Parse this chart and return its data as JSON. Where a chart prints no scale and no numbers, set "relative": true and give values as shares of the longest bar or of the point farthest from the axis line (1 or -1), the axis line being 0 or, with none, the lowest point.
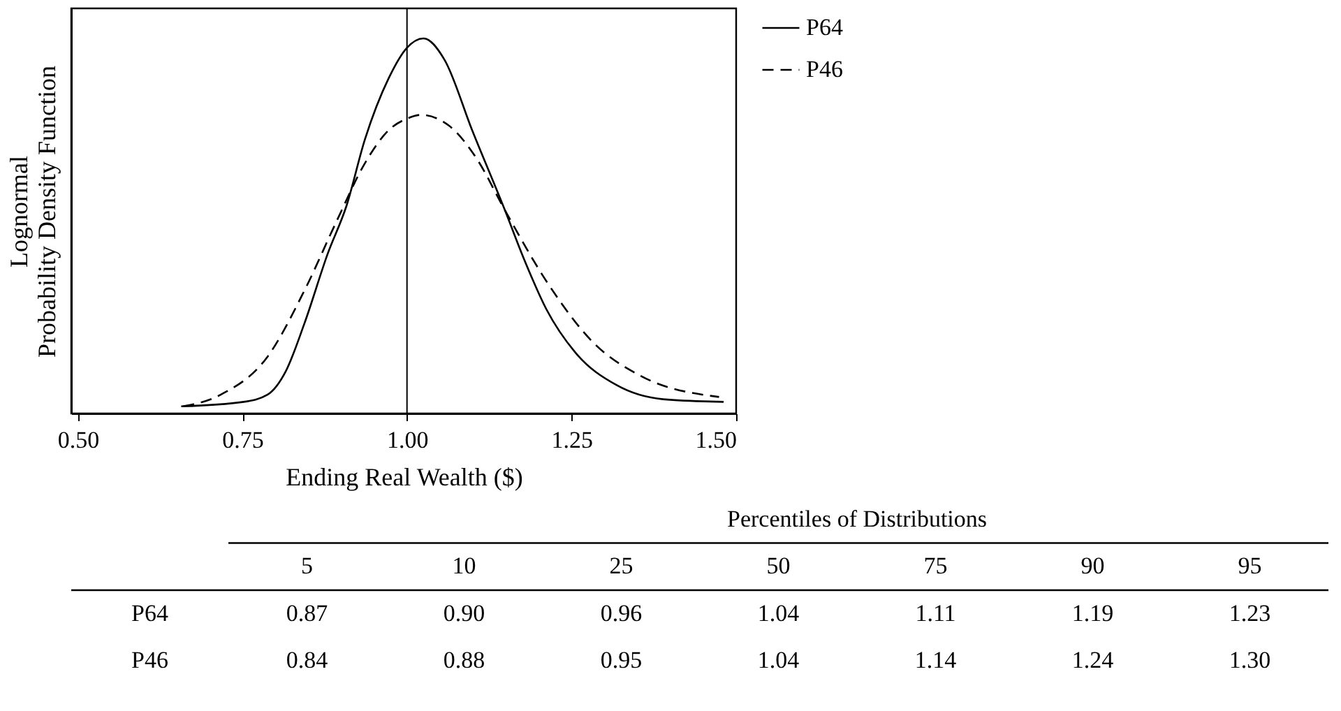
{
  "chart_data": [
    {
      "type": "line",
      "xlabel": "Ending Real Wealth ($)",
      "ylabel": "Lognormal\nProbability Density Function",
      "relative": true,
      "xlim": [
        0.49,
        1.5
      ],
      "xticks": [
        {
          "value": 0.5,
          "label": "0.50"
        },
        {
          "value": 0.75,
          "label": "0.75"
        },
        {
          "value": 1.0,
          "label": "1.00"
        },
        {
          "value": 1.25,
          "label": "1.25"
        },
        {
          "value": 1.5,
          "label": "1.50"
        }
      ],
      "legend": "right",
      "grid": false,
      "ref_lines": [
        {
          "axis": "x",
          "value": 1.0,
          "color": "#000000"
        }
      ],
      "series": [
        {
          "name": "P64",
          "color": "#000000",
          "line_style": "solid",
          "x": [
            0.657,
            0.752,
            0.788,
            0.816,
            0.844,
            0.88,
            0.908,
            0.936,
            0.972,
            1.0,
            1.025,
            1.057,
            1.099,
            1.149,
            1.177,
            1.212,
            1.255,
            1.319,
            1.389,
            1.481
          ],
          "values": [
            0.019,
            0.031,
            0.05,
            0.113,
            0.239,
            0.428,
            0.553,
            0.73,
            0.893,
            0.975,
            1.0,
            0.943,
            0.755,
            0.541,
            0.415,
            0.277,
            0.164,
            0.075,
            0.038,
            0.031
          ]
        },
        {
          "name": "P46",
          "color": "#000000",
          "line_style": "dashed",
          "x": [
            0.66,
            0.717,
            0.788,
            0.844,
            0.894,
            0.936,
            0.972,
            1.0,
            1.021,
            1.064,
            1.106,
            1.149,
            1.212,
            1.283,
            1.354,
            1.474
          ],
          "values": [
            0.019,
            0.05,
            0.151,
            0.327,
            0.516,
            0.667,
            0.755,
            0.786,
            0.796,
            0.767,
            0.679,
            0.541,
            0.352,
            0.189,
            0.101,
            0.044
          ]
        }
      ]
    },
    {
      "type": "other",
      "title": "Percentiles of Distributions",
      "categories": [
        "5",
        "10",
        "25",
        "50",
        "75",
        "90",
        "95"
      ],
      "series": [
        {
          "name": "P64",
          "values": [
            0.87,
            0.9,
            0.96,
            1.04,
            1.11,
            1.19,
            1.23
          ],
          "value_labels": [
            "0.87",
            "0.90",
            "0.96",
            "1.04",
            "1.11",
            "1.19",
            "1.23"
          ]
        },
        {
          "name": "P46",
          "values": [
            0.84,
            0.88,
            0.95,
            1.04,
            1.14,
            1.24,
            1.3
          ],
          "value_labels": [
            "0.84",
            "0.88",
            "0.95",
            "1.04",
            "1.14",
            "1.24",
            "1.30"
          ]
        }
      ]
    }
  ]
}
